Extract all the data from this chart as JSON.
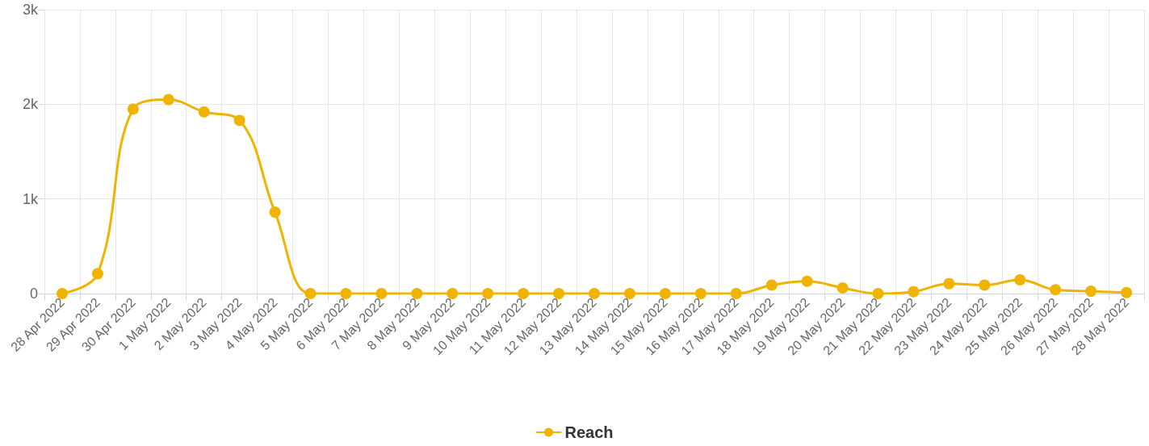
{
  "chart_data": {
    "type": "line",
    "categories": [
      "28 Apr 2022",
      "29 Apr 2022",
      "30 Apr 2022",
      "1 May 2022",
      "2 May 2022",
      "3 May 2022",
      "4 May 2022",
      "5 May 2022",
      "6 May 2022",
      "7 May 2022",
      "8 May 2022",
      "9 May 2022",
      "10 May 2022",
      "11 May 2022",
      "12 May 2022",
      "13 May 2022",
      "14 May 2022",
      "15 May 2022",
      "16 May 2022",
      "17 May 2022",
      "18 May 2022",
      "19 May 2022",
      "20 May 2022",
      "21 May 2022",
      "22 May 2022",
      "23 May 2022",
      "24 May 2022",
      "25 May 2022",
      "26 May 2022",
      "27 May 2022",
      "28 May 2022"
    ],
    "series": [
      {
        "name": "Reach",
        "color": "#f0b400",
        "values": [
          0,
          210,
          1950,
          2050,
          1920,
          1830,
          860,
          0,
          0,
          0,
          0,
          0,
          0,
          0,
          0,
          0,
          0,
          0,
          0,
          0,
          90,
          130,
          60,
          0,
          20,
          105,
          90,
          145,
          40,
          25,
          10
        ]
      }
    ],
    "ylim": [
      0,
      3000
    ],
    "yticks": [
      0,
      {
        "value": 1000,
        "label": "1k"
      },
      {
        "value": 2000,
        "label": "2k"
      },
      {
        "value": 3000,
        "label": "3k"
      }
    ],
    "grid": true,
    "legend": "bottom",
    "marker": "circle",
    "line_style": "solid"
  }
}
